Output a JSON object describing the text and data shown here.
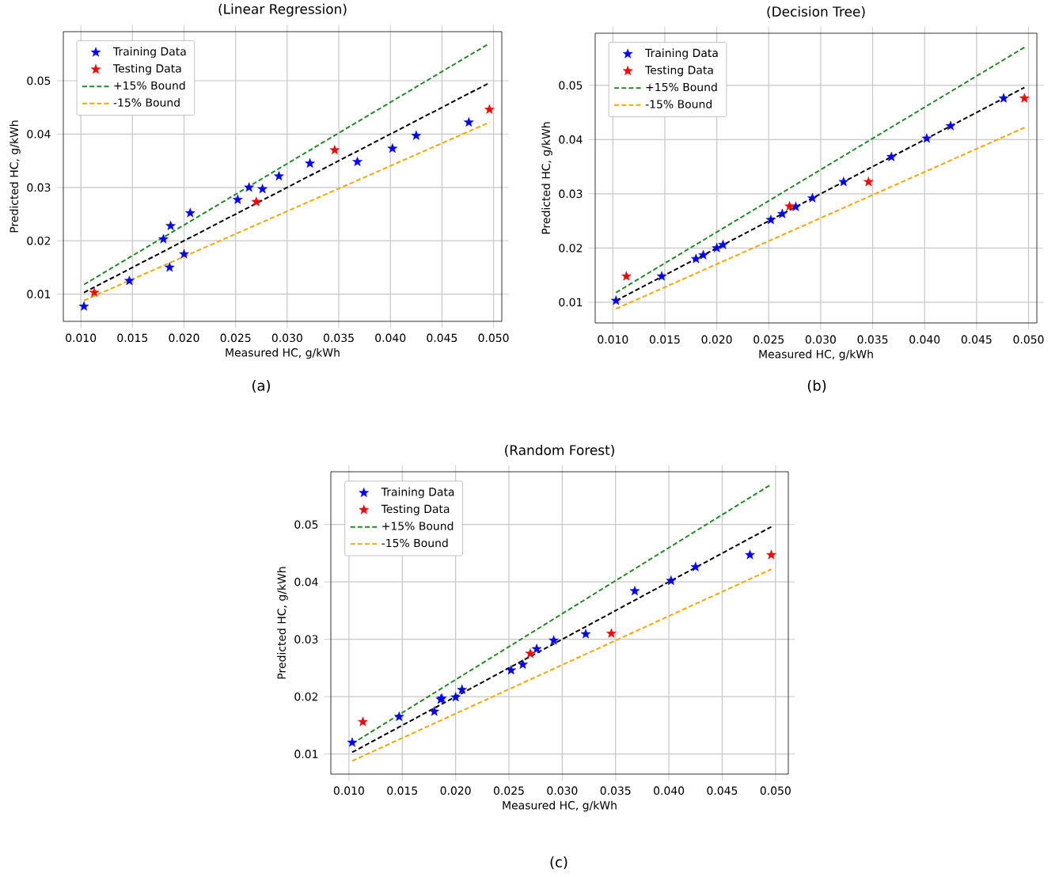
{
  "chart_data": [
    {
      "type": "scatter",
      "title": "(Linear Regression)",
      "xlabel": "Measured HC, g/kWh",
      "ylabel": "Predicted HC, g/kWh",
      "annotations": [
        "(a)"
      ],
      "xlim": [
        0.0083,
        0.0508
      ],
      "ylim": [
        0.0049,
        0.0592
      ],
      "xticks": [
        {
          "value": 0.01,
          "label": "0.010"
        },
        {
          "value": 0.015,
          "label": "0.015"
        },
        {
          "value": 0.02,
          "label": "0.020"
        },
        {
          "value": 0.025,
          "label": "0.025"
        },
        {
          "value": 0.03,
          "label": "0.030"
        },
        {
          "value": 0.035,
          "label": "0.035"
        },
        {
          "value": 0.04,
          "label": "0.040"
        },
        {
          "value": 0.045,
          "label": "0.045"
        },
        {
          "value": 0.05,
          "label": "0.050"
        }
      ],
      "yticks": [
        0.01,
        0.02,
        0.03,
        0.04,
        0.05
      ],
      "grid": true,
      "legend": "top left",
      "marker": "star",
      "series": [
        {
          "name": "Training Data",
          "color": "#0000ff",
          "x": [
            0.0103,
            0.0147,
            0.018,
            0.0186,
            0.0187,
            0.02,
            0.0206,
            0.0252,
            0.0263,
            0.0276,
            0.0292,
            0.0322,
            0.0368,
            0.0402,
            0.0425,
            0.0476
          ],
          "values": [
            0.0077,
            0.0125,
            0.0203,
            0.015,
            0.0228,
            0.0175,
            0.0252,
            0.0277,
            0.03,
            0.0297,
            0.0321,
            0.0345,
            0.0348,
            0.0373,
            0.0397,
            0.0422
          ]
        },
        {
          "name": "Testing Data",
          "color": "#ff0000",
          "x": [
            0.0113,
            0.027,
            0.0346,
            0.0496
          ],
          "values": [
            0.0103,
            0.0273,
            0.037,
            0.0446
          ]
        },
        {
          "name": "+15% Bound",
          "type": "line",
          "color": "#228b22",
          "line_style": "dashed",
          "marker": "none",
          "x": [
            0.0103,
            0.0496
          ],
          "values": [
            0.0118,
            0.057
          ]
        },
        {
          "name": "-15% Bound",
          "type": "line",
          "color": "#ffa500",
          "line_style": "dashed",
          "marker": "none",
          "x": [
            0.0103,
            0.0496
          ],
          "values": [
            0.0088,
            0.0422
          ]
        },
        {
          "type": "line",
          "color": "#000000",
          "line_style": "dashed",
          "marker": "none",
          "x": [
            0.0103,
            0.0496
          ],
          "values": [
            0.0103,
            0.0496
          ]
        }
      ]
    },
    {
      "type": "scatter",
      "title": "(Decision Tree)",
      "xlabel": "Measured HC, g/kWh",
      "ylabel": "Predicted HC, g/kWh",
      "annotations": [
        "(b)"
      ],
      "xlim": [
        0.0083,
        0.0508
      ],
      "ylim": [
        0.0062,
        0.0596
      ],
      "xticks": [
        {
          "value": 0.01,
          "label": "0.010"
        },
        {
          "value": 0.015,
          "label": "0.015"
        },
        {
          "value": 0.02,
          "label": "0.020"
        },
        {
          "value": 0.025,
          "label": "0.025"
        },
        {
          "value": 0.03,
          "label": "0.030"
        },
        {
          "value": 0.035,
          "label": "0.035"
        },
        {
          "value": 0.04,
          "label": "0.040"
        },
        {
          "value": 0.045,
          "label": "0.045"
        },
        {
          "value": 0.05,
          "label": "0.050"
        }
      ],
      "yticks": [
        0.01,
        0.02,
        0.03,
        0.04,
        0.05
      ],
      "grid": true,
      "legend": "top left",
      "marker": "star",
      "series": [
        {
          "name": "Training Data",
          "color": "#0000ff",
          "x": [
            0.0103,
            0.0147,
            0.018,
            0.0186,
            0.0187,
            0.02,
            0.0206,
            0.0252,
            0.0263,
            0.0276,
            0.0292,
            0.0322,
            0.0368,
            0.0402,
            0.0425,
            0.0476
          ],
          "values": [
            0.0103,
            0.0148,
            0.018,
            null,
            0.0187,
            0.02,
            0.0206,
            0.0252,
            0.0263,
            0.0276,
            0.0292,
            0.0322,
            0.0368,
            0.0402,
            0.0425,
            0.0476
          ]
        },
        {
          "name": "Testing Data",
          "color": "#ff0000",
          "x": [
            0.0113,
            0.027,
            0.0346,
            0.0496
          ],
          "values": [
            0.0148,
            0.0277,
            0.0322,
            0.0476
          ]
        },
        {
          "name": "+15% Bound",
          "type": "line",
          "color": "#228b22",
          "line_style": "dashed",
          "marker": "none",
          "x": [
            0.0103,
            0.0496
          ],
          "values": [
            0.0118,
            0.057
          ]
        },
        {
          "name": "-15% Bound",
          "type": "line",
          "color": "#ffa500",
          "line_style": "dashed",
          "marker": "none",
          "x": [
            0.0103,
            0.0496
          ],
          "values": [
            0.0088,
            0.0422
          ]
        },
        {
          "type": "line",
          "color": "#000000",
          "line_style": "dashed",
          "marker": "none",
          "x": [
            0.0103,
            0.0496
          ],
          "values": [
            0.0103,
            0.0496
          ]
        }
      ]
    },
    {
      "type": "scatter",
      "title": "(Random Forest)",
      "xlabel": "Measured HC, g/kWh",
      "ylabel": "Predicted HC, g/kWh",
      "annotations": [
        "(c)"
      ],
      "xlim": [
        0.0083,
        0.0512
      ],
      "ylim": [
        0.0065,
        0.0592
      ],
      "xticks": [
        {
          "value": 0.01,
          "label": "0.010"
        },
        {
          "value": 0.015,
          "label": "0.015"
        },
        {
          "value": 0.02,
          "label": "0.020"
        },
        {
          "value": 0.025,
          "label": "0.025"
        },
        {
          "value": 0.03,
          "label": "0.030"
        },
        {
          "value": 0.035,
          "label": "0.035"
        },
        {
          "value": 0.04,
          "label": "0.040"
        },
        {
          "value": 0.045,
          "label": "0.045"
        },
        {
          "value": 0.05,
          "label": "0.050"
        }
      ],
      "yticks": [
        0.01,
        0.02,
        0.03,
        0.04,
        0.05
      ],
      "grid": true,
      "legend": "top left",
      "marker": "star",
      "series": [
        {
          "name": "Training Data",
          "color": "#0000ff",
          "x": [
            0.0103,
            0.0147,
            0.018,
            0.0186,
            0.0187,
            0.02,
            0.0206,
            0.0252,
            0.0263,
            0.0276,
            0.0292,
            0.0322,
            0.0368,
            0.0402,
            0.0425,
            0.0476
          ],
          "values": [
            0.012,
            0.0165,
            0.0174,
            0.0195,
            0.0197,
            0.0199,
            0.0212,
            0.0246,
            0.0256,
            0.0283,
            0.0298,
            0.0309,
            0.0384,
            0.0402,
            0.0426,
            0.0447
          ]
        },
        {
          "name": "Testing Data",
          "color": "#ff0000",
          "x": [
            0.0113,
            0.027,
            0.0346,
            0.0496
          ],
          "values": [
            0.0156,
            0.0275,
            0.031,
            0.0447
          ]
        },
        {
          "name": "+15% Bound",
          "type": "line",
          "color": "#228b22",
          "line_style": "dashed",
          "marker": "none",
          "x": [
            0.0103,
            0.0496
          ],
          "values": [
            0.0118,
            0.057
          ]
        },
        {
          "name": "-15% Bound",
          "type": "line",
          "color": "#ffa500",
          "line_style": "dashed",
          "marker": "none",
          "x": [
            0.0103,
            0.0496
          ],
          "values": [
            0.0088,
            0.0422
          ]
        },
        {
          "type": "line",
          "color": "#000000",
          "line_style": "dashed",
          "marker": "none",
          "x": [
            0.0103,
            0.0496
          ],
          "values": [
            0.0103,
            0.0496
          ]
        }
      ]
    }
  ]
}
